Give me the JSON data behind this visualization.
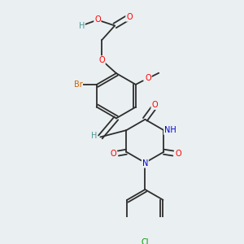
{
  "background_color": "#eaeff1",
  "bond_color": "#2d2d2d",
  "atom_colors": {
    "O": "#ff0000",
    "N": "#0000cc",
    "Br": "#cc6600",
    "Cl": "#009900",
    "H": "#4d9999",
    "C": "#2d2d2d"
  },
  "font_size": 7.0,
  "fig_width": 3.0,
  "fig_height": 3.0,
  "dpi": 100
}
